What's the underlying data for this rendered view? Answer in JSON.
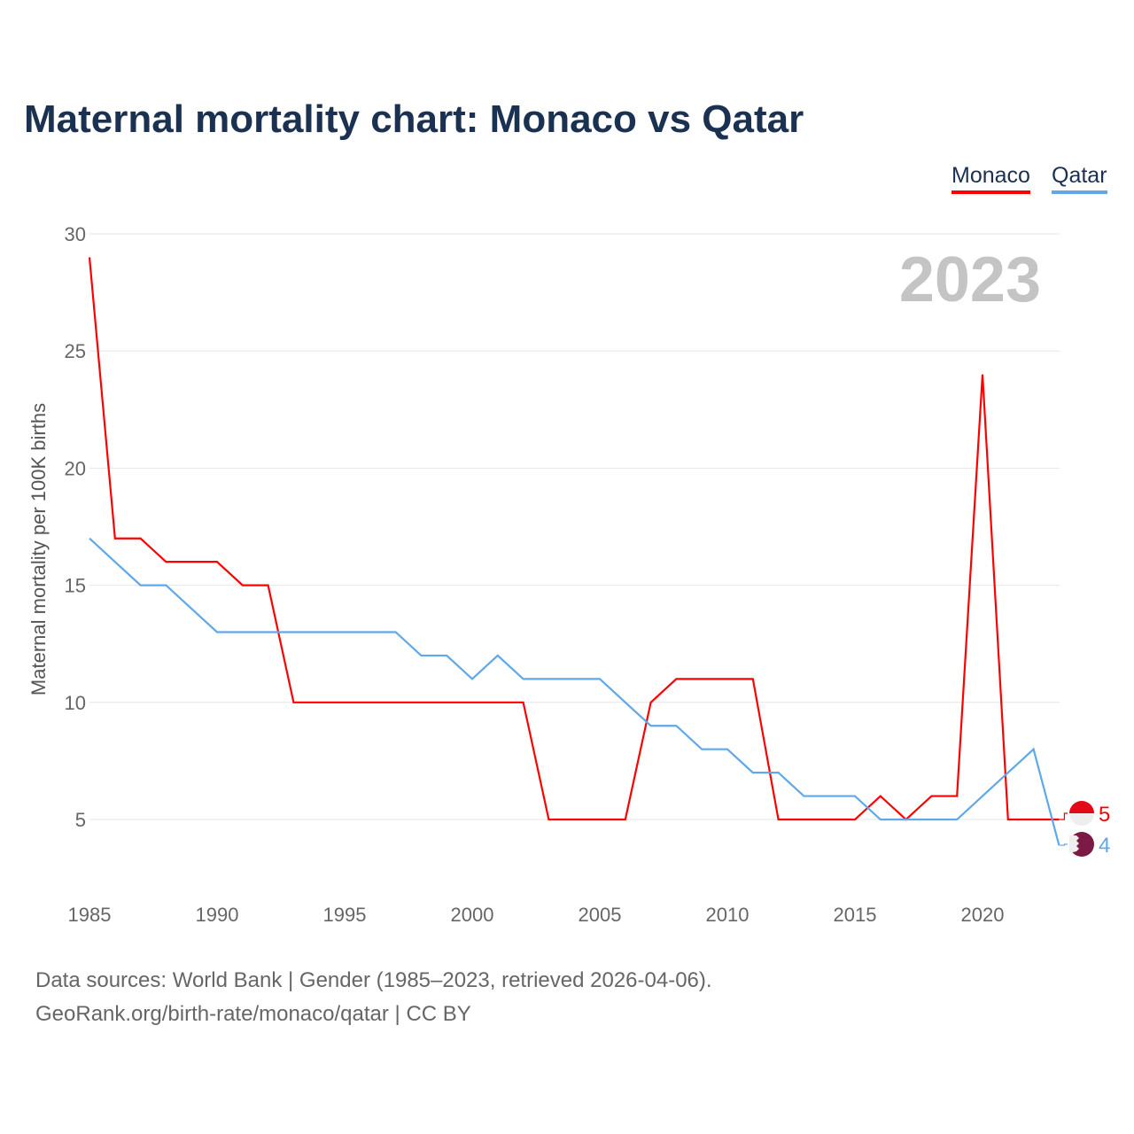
{
  "title": "Maternal mortality chart: Monaco vs Qatar",
  "source_line1": "Data sources: World Bank | Gender (1985–2023, retrieved 2026-04-06).",
  "source_line2": "GeoRank.org/birth-rate/monaco/qatar | CC BY",
  "chart_data": {
    "type": "line",
    "title": "Maternal mortality chart: Monaco vs Qatar",
    "ylabel": "Maternal mortality per 100K births",
    "xlabel": "",
    "year_label": "2023",
    "xlim": [
      1985,
      2023
    ],
    "ylim": [
      2.5,
      30
    ],
    "x_ticks": [
      1985,
      1990,
      1995,
      2000,
      2005,
      2010,
      2015,
      2020
    ],
    "y_ticks": [
      5,
      10,
      15,
      20,
      25,
      30
    ],
    "legend_position": "top-right",
    "x": [
      1985,
      1986,
      1987,
      1988,
      1989,
      1990,
      1991,
      1992,
      1993,
      1994,
      1995,
      1996,
      1997,
      1998,
      1999,
      2000,
      2001,
      2002,
      2003,
      2004,
      2005,
      2006,
      2007,
      2008,
      2009,
      2010,
      2011,
      2012,
      2013,
      2014,
      2015,
      2016,
      2017,
      2018,
      2019,
      2020,
      2021,
      2022,
      2023
    ],
    "series": [
      {
        "name": "Monaco",
        "color": "#ff0000",
        "end_label": "5",
        "values": [
          29,
          17,
          17,
          16,
          16,
          16,
          15,
          15,
          10,
          10,
          10,
          10,
          10,
          10,
          10,
          10,
          10,
          10,
          5,
          5,
          5,
          5,
          10,
          11,
          11,
          11,
          11,
          5,
          5,
          5,
          5,
          6,
          5,
          6,
          6,
          24,
          5,
          5,
          5
        ]
      },
      {
        "name": "Qatar",
        "color": "#5fa8ea",
        "end_label": "4",
        "values": [
          17,
          16,
          15,
          15,
          14,
          13,
          13,
          13,
          13,
          13,
          13,
          13,
          13,
          12,
          12,
          11,
          12,
          11,
          11,
          11,
          11,
          10,
          9,
          9,
          8,
          8,
          7,
          7,
          6,
          6,
          6,
          5,
          5,
          5,
          5,
          6,
          7,
          8,
          3.9
        ]
      }
    ]
  }
}
